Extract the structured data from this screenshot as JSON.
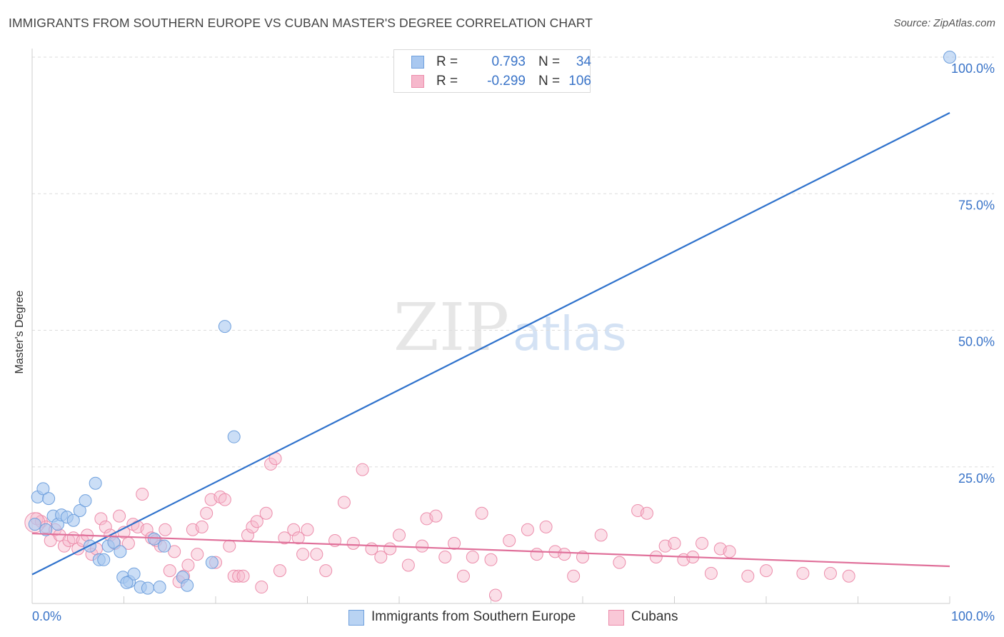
{
  "header": {
    "title": "IMMIGRANTS FROM SOUTHERN EUROPE VS CUBAN MASTER'S DEGREE CORRELATION CHART",
    "source": "Source: ZipAtlas.com"
  },
  "watermark": {
    "zip": "ZIP",
    "atlas": "atlas"
  },
  "legend_top": {
    "rows": [
      {
        "r_label": "R =",
        "r_value": "0.793",
        "n_label": "N =",
        "n_value": "34"
      },
      {
        "r_label": "R =",
        "r_value": "-0.299",
        "n_label": "N =",
        "n_value": "106"
      }
    ]
  },
  "legend_bottom": {
    "items": [
      {
        "label": "Immigrants from Southern Europe"
      },
      {
        "label": "Cubans"
      }
    ]
  },
  "colors": {
    "blue_fill": "#a9c8f0",
    "blue_stroke": "#6fa0dd",
    "blue_line": "#2f72cc",
    "pink_fill": "#f6b8cc",
    "pink_stroke": "#ec8dab",
    "pink_line": "#e0709a",
    "grid": "#dddddd",
    "tick_label": "#3a74c8"
  },
  "chart_data": {
    "type": "scatter",
    "title": "IMMIGRANTS FROM SOUTHERN EUROPE VS CUBAN MASTER'S DEGREE CORRELATION CHART",
    "xlabel": "",
    "ylabel": "Master's Degree",
    "xlim": [
      0,
      100
    ],
    "ylim": [
      0,
      100
    ],
    "x_tick_labels": [
      "0.0%",
      "100.0%"
    ],
    "y_ticks": [
      25,
      50,
      75,
      100
    ],
    "y_tick_labels": [
      "25.0%",
      "50.0%",
      "75.0%",
      "100.0%"
    ],
    "grid": "horizontal dashed",
    "series": [
      {
        "name": "Immigrants from Southern Europe",
        "r": 0.793,
        "n": 34,
        "trend": {
          "x": [
            0,
            100
          ],
          "y": [
            5.3,
            89.8
          ]
        },
        "points": [
          [
            0.6,
            19.5
          ],
          [
            1.2,
            21.0
          ],
          [
            1.8,
            19.2
          ],
          [
            2.3,
            16.0
          ],
          [
            2.8,
            14.5
          ],
          [
            3.2,
            16.2
          ],
          [
            3.8,
            15.8
          ],
          [
            4.5,
            15.2
          ],
          [
            5.2,
            17.0
          ],
          [
            5.8,
            18.8
          ],
          [
            6.3,
            10.5
          ],
          [
            6.9,
            22.0
          ],
          [
            7.3,
            8.0
          ],
          [
            7.8,
            8.0
          ],
          [
            8.3,
            10.5
          ],
          [
            8.9,
            11.2
          ],
          [
            9.6,
            9.5
          ],
          [
            9.9,
            4.8
          ],
          [
            10.6,
            4.0
          ],
          [
            11.1,
            5.4
          ],
          [
            11.8,
            3.0
          ],
          [
            12.6,
            2.8
          ],
          [
            13.3,
            11.8
          ],
          [
            13.9,
            3.0
          ],
          [
            14.4,
            10.5
          ],
          [
            16.4,
            4.8
          ],
          [
            16.9,
            3.3
          ],
          [
            19.6,
            7.5
          ],
          [
            21.0,
            50.7
          ],
          [
            22.0,
            30.5
          ],
          [
            0.3,
            14.5
          ],
          [
            10.3,
            3.8
          ],
          [
            1.5,
            13.5
          ],
          [
            100.0,
            100.0
          ]
        ]
      },
      {
        "name": "Cubans",
        "r": -0.299,
        "n": 106,
        "trend": {
          "x": [
            0,
            100
          ],
          "y": [
            12.8,
            6.8
          ]
        },
        "points": [
          [
            0.5,
            15.5
          ],
          [
            1.0,
            15.0
          ],
          [
            1.5,
            14.0
          ],
          [
            2.0,
            11.5
          ],
          [
            2.5,
            13.5
          ],
          [
            3.0,
            12.5
          ],
          [
            3.5,
            10.5
          ],
          [
            4.0,
            11.5
          ],
          [
            4.5,
            12.0
          ],
          [
            5.0,
            10.0
          ],
          [
            5.5,
            11.5
          ],
          [
            6.0,
            12.5
          ],
          [
            6.5,
            9.0
          ],
          [
            7.0,
            10.0
          ],
          [
            7.5,
            15.5
          ],
          [
            8.0,
            14.0
          ],
          [
            8.5,
            12.5
          ],
          [
            9.0,
            11.0
          ],
          [
            9.5,
            16.0
          ],
          [
            10.0,
            13.0
          ],
          [
            10.5,
            11.0
          ],
          [
            11.0,
            14.5
          ],
          [
            11.5,
            14.0
          ],
          [
            12.0,
            20.0
          ],
          [
            12.5,
            13.5
          ],
          [
            13.0,
            12.0
          ],
          [
            13.5,
            11.5
          ],
          [
            14.0,
            10.5
          ],
          [
            14.5,
            13.5
          ],
          [
            15.0,
            6.0
          ],
          [
            15.5,
            9.5
          ],
          [
            16.0,
            4.0
          ],
          [
            16.5,
            5.0
          ],
          [
            17.0,
            7.0
          ],
          [
            17.5,
            13.5
          ],
          [
            18.0,
            9.0
          ],
          [
            18.5,
            14.0
          ],
          [
            19.0,
            16.5
          ],
          [
            19.5,
            19.0
          ],
          [
            20.0,
            7.5
          ],
          [
            20.5,
            19.5
          ],
          [
            21.0,
            19.0
          ],
          [
            21.5,
            10.5
          ],
          [
            22.0,
            5.0
          ],
          [
            22.5,
            5.0
          ],
          [
            23.0,
            5.0
          ],
          [
            23.5,
            12.5
          ],
          [
            24.0,
            14.0
          ],
          [
            24.5,
            15.0
          ],
          [
            25.0,
            3.0
          ],
          [
            25.5,
            16.5
          ],
          [
            26.0,
            25.5
          ],
          [
            26.5,
            26.5
          ],
          [
            27.0,
            6.0
          ],
          [
            27.5,
            12.0
          ],
          [
            28.5,
            13.5
          ],
          [
            29.0,
            12.0
          ],
          [
            29.5,
            9.0
          ],
          [
            30.0,
            13.5
          ],
          [
            31.0,
            9.0
          ],
          [
            32.0,
            6.0
          ],
          [
            33.0,
            11.5
          ],
          [
            34.0,
            18.5
          ],
          [
            35.0,
            11.0
          ],
          [
            36.0,
            24.5
          ],
          [
            37.0,
            10.0
          ],
          [
            38.0,
            8.5
          ],
          [
            39.0,
            10.0
          ],
          [
            40.0,
            12.5
          ],
          [
            41.0,
            7.0
          ],
          [
            42.5,
            10.5
          ],
          [
            43.0,
            15.5
          ],
          [
            44.0,
            16.0
          ],
          [
            45.0,
            8.5
          ],
          [
            46.0,
            11.0
          ],
          [
            47.0,
            5.0
          ],
          [
            48.0,
            8.5
          ],
          [
            49.0,
            16.5
          ],
          [
            50.0,
            8.0
          ],
          [
            50.5,
            1.5
          ],
          [
            52.0,
            11.5
          ],
          [
            54.0,
            13.5
          ],
          [
            55.0,
            9.0
          ],
          [
            56.0,
            14.0
          ],
          [
            57.0,
            9.5
          ],
          [
            58.0,
            9.0
          ],
          [
            59.0,
            5.0
          ],
          [
            60.0,
            8.5
          ],
          [
            62.0,
            12.5
          ],
          [
            64.0,
            7.5
          ],
          [
            66.0,
            17.0
          ],
          [
            67.0,
            16.5
          ],
          [
            68.0,
            8.5
          ],
          [
            69.0,
            10.5
          ],
          [
            70.0,
            11.0
          ],
          [
            71.0,
            8.0
          ],
          [
            72.0,
            8.5
          ],
          [
            73.0,
            11.0
          ],
          [
            74.0,
            5.5
          ],
          [
            75.0,
            10.0
          ],
          [
            76.0,
            9.5
          ],
          [
            78.0,
            5.0
          ],
          [
            80.0,
            6.0
          ],
          [
            84.0,
            5.5
          ],
          [
            87.0,
            5.5
          ],
          [
            89.0,
            5.0
          ]
        ]
      }
    ]
  }
}
